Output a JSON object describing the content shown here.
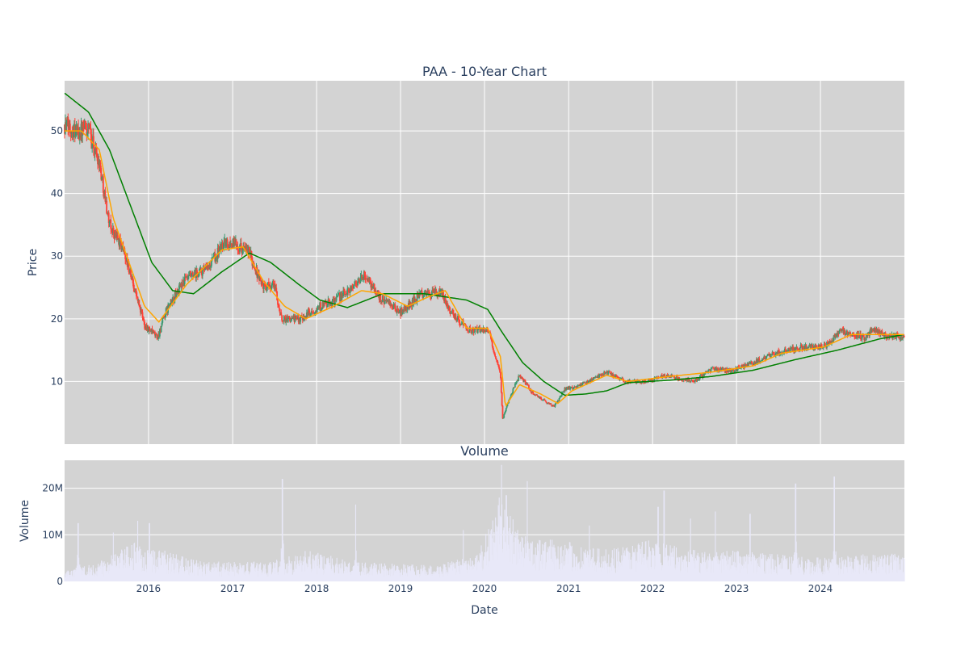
{
  "chart_data": [
    {
      "type": "candlestick",
      "title": "PAA - 10-Year Chart",
      "xlabel": "",
      "ylabel": "Price",
      "x_range": [
        "2015-01-01",
        "2024-12-31"
      ],
      "ylim": [
        0,
        58
      ],
      "y_ticks": [
        10,
        20,
        30,
        40,
        50
      ],
      "grid": true,
      "background": "#d3d3d3",
      "colors": {
        "up": "#3d9970",
        "down": "#ff4136",
        "ma_short": "#ffa500",
        "ma_long": "#008000"
      },
      "price_anchors": [
        [
          "2015-01-02",
          51
        ],
        [
          "2015-03-01",
          50
        ],
        [
          "2015-04-15",
          50
        ],
        [
          "2015-06-01",
          45
        ],
        [
          "2015-07-15",
          35
        ],
        [
          "2015-09-15",
          31
        ],
        [
          "2015-12-15",
          19
        ],
        [
          "2016-02-10",
          17
        ],
        [
          "2016-03-15",
          21
        ],
        [
          "2016-06-01",
          26
        ],
        [
          "2016-09-15",
          28
        ],
        [
          "2016-11-20",
          32
        ],
        [
          "2017-01-15",
          32
        ],
        [
          "2017-03-15",
          30.5
        ],
        [
          "2017-04-15",
          27.5
        ],
        [
          "2017-05-15",
          25
        ],
        [
          "2017-07-01",
          25.5
        ],
        [
          "2017-08-01",
          20
        ],
        [
          "2017-10-15",
          20
        ],
        [
          "2018-01-15",
          22
        ],
        [
          "2018-03-01",
          22.5
        ],
        [
          "2018-05-01",
          24
        ],
        [
          "2018-08-01",
          27
        ],
        [
          "2018-10-01",
          23.5
        ],
        [
          "2019-01-01",
          21
        ],
        [
          "2019-04-01",
          24
        ],
        [
          "2019-07-01",
          24
        ],
        [
          "2019-08-10",
          21
        ],
        [
          "2019-11-01",
          18
        ],
        [
          "2020-01-15",
          18.5
        ],
        [
          "2020-03-10",
          11
        ],
        [
          "2020-03-20",
          4
        ],
        [
          "2020-04-15",
          7
        ],
        [
          "2020-06-01",
          11
        ],
        [
          "2020-08-01",
          8
        ],
        [
          "2020-10-30",
          6
        ],
        [
          "2020-12-15",
          8.8
        ],
        [
          "2021-03-01",
          9.5
        ],
        [
          "2021-06-15",
          11.5
        ],
        [
          "2021-09-01",
          10
        ],
        [
          "2021-12-01",
          10
        ],
        [
          "2022-03-01",
          11
        ],
        [
          "2022-07-01",
          10
        ],
        [
          "2022-09-15",
          12
        ],
        [
          "2022-12-15",
          11.8
        ],
        [
          "2023-03-15",
          13
        ],
        [
          "2023-06-15",
          14.5
        ],
        [
          "2023-10-15",
          15.5
        ],
        [
          "2024-01-15",
          15.5
        ],
        [
          "2024-04-01",
          18
        ],
        [
          "2024-07-15",
          17
        ],
        [
          "2024-08-15",
          18.5
        ],
        [
          "2024-10-01",
          17.5
        ],
        [
          "2024-12-31",
          17
        ]
      ],
      "ma_short_anchors": [
        [
          "2015-01-02",
          50
        ],
        [
          "2015-03-15",
          50
        ],
        [
          "2015-06-01",
          47
        ],
        [
          "2015-08-01",
          36
        ],
        [
          "2015-12-15",
          22
        ],
        [
          "2016-02-15",
          19.5
        ],
        [
          "2016-06-15",
          25.5
        ],
        [
          "2016-11-15",
          31
        ],
        [
          "2017-02-15",
          31.5
        ],
        [
          "2017-05-15",
          26
        ],
        [
          "2017-08-15",
          22
        ],
        [
          "2017-11-15",
          20
        ],
        [
          "2018-03-15",
          22
        ],
        [
          "2018-07-15",
          24.5
        ],
        [
          "2018-10-15",
          24
        ],
        [
          "2019-02-01",
          22
        ],
        [
          "2019-05-01",
          23.5
        ],
        [
          "2019-07-15",
          24.5
        ],
        [
          "2019-10-15",
          18.5
        ],
        [
          "2020-01-15",
          18.5
        ],
        [
          "2020-03-10",
          14
        ],
        [
          "2020-04-01",
          6
        ],
        [
          "2020-06-01",
          9.5
        ],
        [
          "2020-09-01",
          8
        ],
        [
          "2020-11-15",
          6.5
        ],
        [
          "2021-01-15",
          8.5
        ],
        [
          "2021-06-15",
          11
        ],
        [
          "2021-09-15",
          10
        ],
        [
          "2022-03-15",
          10.8
        ],
        [
          "2022-09-15",
          11.5
        ],
        [
          "2023-03-15",
          12.5
        ],
        [
          "2023-07-15",
          14.5
        ],
        [
          "2024-01-15",
          15.5
        ],
        [
          "2024-05-15",
          17.5
        ],
        [
          "2024-12-31",
          17.5
        ]
      ],
      "ma_long_anchors": [
        [
          "2015-01-02",
          56
        ],
        [
          "2015-04-15",
          53
        ],
        [
          "2015-07-15",
          47
        ],
        [
          "2015-10-15",
          38
        ],
        [
          "2016-01-15",
          29
        ],
        [
          "2016-04-15",
          24.5
        ],
        [
          "2016-07-15",
          24
        ],
        [
          "2016-11-15",
          27.5
        ],
        [
          "2017-03-15",
          30.5
        ],
        [
          "2017-06-15",
          29
        ],
        [
          "2017-10-15",
          25.5
        ],
        [
          "2018-01-15",
          23
        ],
        [
          "2018-05-15",
          21.8
        ],
        [
          "2018-10-15",
          24
        ],
        [
          "2019-04-15",
          24
        ],
        [
          "2019-10-15",
          23
        ],
        [
          "2020-01-15",
          21.5
        ],
        [
          "2020-03-15",
          18
        ],
        [
          "2020-06-15",
          13
        ],
        [
          "2020-09-15",
          10
        ],
        [
          "2020-12-15",
          7.8
        ],
        [
          "2021-03-15",
          8
        ],
        [
          "2021-06-15",
          8.5
        ],
        [
          "2021-09-15",
          9.8
        ],
        [
          "2022-03-15",
          10.2
        ],
        [
          "2022-09-15",
          10.8
        ],
        [
          "2023-03-15",
          11.8
        ],
        [
          "2023-09-15",
          13.5
        ],
        [
          "2024-03-15",
          15
        ],
        [
          "2024-09-15",
          16.8
        ],
        [
          "2024-12-31",
          17.5
        ]
      ]
    },
    {
      "type": "bar",
      "title": "Volume",
      "xlabel": "Date",
      "ylabel": "Volume",
      "ylim": [
        0,
        26000000
      ],
      "y_ticks": [
        0,
        10000000,
        20000000
      ],
      "y_tick_labels": [
        "0",
        "10M",
        "20M"
      ],
      "x_ticks": [
        "2016-01-01",
        "2017-01-01",
        "2018-01-01",
        "2019-01-01",
        "2020-01-01",
        "2021-01-01",
        "2022-01-01",
        "2023-01-01",
        "2024-01-01"
      ],
      "x_tick_labels": [
        "2016",
        "2017",
        "2018",
        "2019",
        "2020",
        "2021",
        "2022",
        "2023",
        "2024"
      ],
      "grid": true,
      "background": "#d3d3d3",
      "bar_color": "#e8e8f8",
      "base_volume_anchors": [
        [
          "2015-01-02",
          1.5
        ],
        [
          "2015-06-01",
          2.5
        ],
        [
          "2015-11-01",
          5
        ],
        [
          "2016-03-01",
          4
        ],
        [
          "2016-09-01",
          2.5
        ],
        [
          "2017-06-01",
          2.5
        ],
        [
          "2017-12-01",
          4
        ],
        [
          "2018-06-01",
          2.5
        ],
        [
          "2019-06-01",
          2
        ],
        [
          "2019-12-01",
          3.5
        ],
        [
          "2020-03-20",
          11
        ],
        [
          "2020-06-01",
          6
        ],
        [
          "2021-01-01",
          5
        ],
        [
          "2021-06-01",
          4
        ],
        [
          "2022-01-01",
          5.5
        ],
        [
          "2022-06-01",
          4
        ],
        [
          "2023-01-01",
          4
        ],
        [
          "2023-06-01",
          3.5
        ],
        [
          "2024-01-01",
          3
        ],
        [
          "2024-06-01",
          3.5
        ],
        [
          "2024-12-31",
          3.5
        ]
      ],
      "volume_spikes_millions": [
        [
          "2015-03-01",
          12.5
        ],
        [
          "2015-08-01",
          10.5
        ],
        [
          "2015-11-15",
          13
        ],
        [
          "2016-01-05",
          12.5
        ],
        [
          "2017-08-05",
          22
        ],
        [
          "2018-06-20",
          16.5
        ],
        [
          "2019-10-01",
          11
        ],
        [
          "2020-03-05",
          18
        ],
        [
          "2020-03-15",
          25
        ],
        [
          "2020-04-05",
          18.5
        ],
        [
          "2020-07-05",
          21.5
        ],
        [
          "2021-04-01",
          12
        ],
        [
          "2022-01-25",
          16
        ],
        [
          "2022-02-20",
          19.5
        ],
        [
          "2022-06-15",
          13.5
        ],
        [
          "2022-10-01",
          15
        ],
        [
          "2023-03-01",
          14.5
        ],
        [
          "2023-09-15",
          21
        ],
        [
          "2024-03-01",
          22.5
        ]
      ]
    }
  ]
}
